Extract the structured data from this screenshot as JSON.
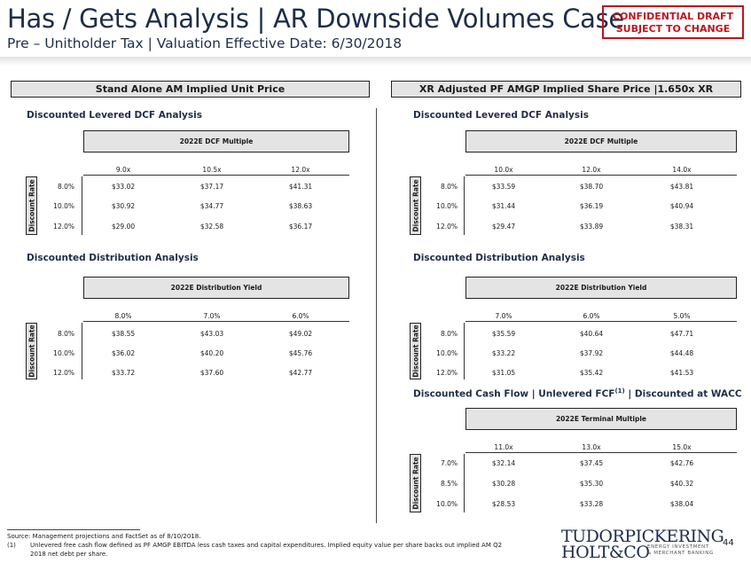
{
  "header": {
    "title": "Has / Gets Analysis | AR Downside Volumes Case",
    "subtitle": "Pre – Unitholder Tax | Valuation Effective Date: 6/30/2018",
    "confidential_line1": "CONFIDENTIAL DRAFT",
    "confidential_line2": "SUBJECT TO CHANGE"
  },
  "left": {
    "header": "Stand Alone AM Implied Unit Price",
    "dcf": {
      "title": "Discounted Levered DCF Analysis",
      "multiple_header": "2022E DCF Multiple",
      "side_label": "Discount Rate",
      "columns": [
        "9.0x",
        "10.5x",
        "12.0x"
      ],
      "rows": [
        {
          "rate": "8.0%",
          "values": [
            "$33.02",
            "$37.17",
            "$41.31"
          ]
        },
        {
          "rate": "10.0%",
          "values": [
            "$30.92",
            "$34.77",
            "$38.63"
          ]
        },
        {
          "rate": "12.0%",
          "values": [
            "$29.00",
            "$32.58",
            "$36.17"
          ]
        }
      ]
    },
    "dist": {
      "title": "Discounted Distribution Analysis",
      "multiple_header": "2022E Distribution Yield",
      "side_label": "Discount Rate",
      "columns": [
        "8.0%",
        "7.0%",
        "6.0%"
      ],
      "rows": [
        {
          "rate": "8.0%",
          "values": [
            "$38.55",
            "$43.03",
            "$49.02"
          ]
        },
        {
          "rate": "10.0%",
          "values": [
            "$36.02",
            "$40.20",
            "$45.76"
          ]
        },
        {
          "rate": "12.0%",
          "values": [
            "$33.72",
            "$37.60",
            "$42.77"
          ]
        }
      ]
    }
  },
  "right": {
    "header": "XR Adjusted PF AMGP Implied Share Price |1.650x XR",
    "dcf": {
      "title": "Discounted Levered DCF Analysis",
      "multiple_header": "2022E DCF Multiple",
      "side_label": "Discount Rate",
      "columns": [
        "10.0x",
        "12.0x",
        "14.0x"
      ],
      "rows": [
        {
          "rate": "8.0%",
          "values": [
            "$33.59",
            "$38.70",
            "$43.81"
          ]
        },
        {
          "rate": "10.0%",
          "values": [
            "$31.44",
            "$36.19",
            "$40.94"
          ]
        },
        {
          "rate": "12.0%",
          "values": [
            "$29.47",
            "$33.89",
            "$38.31"
          ]
        }
      ]
    },
    "dist": {
      "title": "Discounted Distribution Analysis",
      "multiple_header": "2022E Distribution Yield",
      "side_label": "Discount Rate",
      "columns": [
        "7.0%",
        "6.0%",
        "5.0%"
      ],
      "rows": [
        {
          "rate": "8.0%",
          "values": [
            "$35.59",
            "$40.64",
            "$47.71"
          ]
        },
        {
          "rate": "10.0%",
          "values": [
            "$33.22",
            "$37.92",
            "$44.48"
          ]
        },
        {
          "rate": "12.0%",
          "values": [
            "$31.05",
            "$35.42",
            "$41.53"
          ]
        }
      ]
    },
    "cf": {
      "title_prefix": "Discounted Cash Flow | Unlevered FCF",
      "title_sup": "(1)",
      "title_suffix": " | Discounted at WACC",
      "multiple_header": "2022E Terminal Multiple",
      "side_label": "Discount Rate",
      "columns": [
        "11.0x",
        "13.0x",
        "15.0x"
      ],
      "rows": [
        {
          "rate": "7.0%",
          "values": [
            "$32.14",
            "$37.45",
            "$42.76"
          ]
        },
        {
          "rate": "8.5%",
          "values": [
            "$30.28",
            "$35.30",
            "$40.32"
          ]
        },
        {
          "rate": "10.0%",
          "values": [
            "$28.53",
            "$33.28",
            "$38.04"
          ]
        }
      ]
    }
  },
  "footer": {
    "source": "Source: Management projections and FactSet as of 8/10/2018.",
    "note_num": "(1)",
    "note_line1": "Unlevered free cash flow defined as PF AMGP EBITDA less cash taxes and capital expenditures. Implied equity value per share backs out implied AM Q2",
    "note_line2": "2018 net debt per share.",
    "logo_line1": "TUDORPICKERING",
    "logo_line2": "HOLT&CO",
    "logo_tag1": "ENERGY INVESTMENT",
    "logo_tag2": "& MERCHANT BANKING",
    "page_number": "44"
  },
  "colors": {
    "title": "#1f2d4a",
    "confidential": "#c0151c",
    "header_fill": "#e4e4e4"
  }
}
